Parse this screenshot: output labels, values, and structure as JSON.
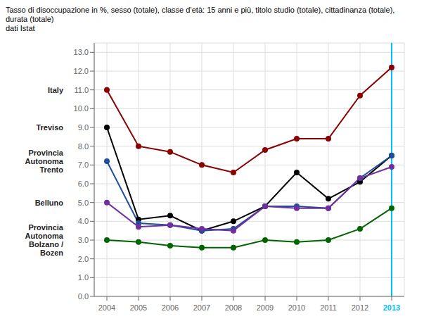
{
  "chart_data": {
    "type": "line",
    "title": "Tasso di disoccupazione in %, sesso (totale), classe d’età: 15 anni e più, titolo studio (totale), cittadinanza (totale), durata (totale)",
    "subtitle": "dati Istat",
    "x": [
      2004,
      2005,
      2006,
      2007,
      2008,
      2009,
      2010,
      2011,
      2012,
      2013
    ],
    "series": [
      {
        "name": "Italy",
        "color": "#8B0000",
        "values": [
          11.0,
          8.0,
          7.7,
          7.0,
          6.6,
          7.8,
          8.4,
          8.4,
          10.7,
          12.2
        ]
      },
      {
        "name": "Treviso",
        "color": "#000000",
        "values": [
          9.0,
          4.1,
          4.3,
          3.5,
          4.0,
          4.8,
          6.6,
          5.2,
          6.1,
          7.5
        ]
      },
      {
        "name": "Provincia\nAutonoma\nTrento",
        "color": "#1F4E9B",
        "values": [
          7.2,
          3.9,
          3.8,
          3.5,
          3.6,
          4.8,
          4.8,
          4.7,
          6.3,
          7.5
        ]
      },
      {
        "name": "Belluno",
        "color": "#7030A0",
        "values": [
          5.0,
          3.7,
          3.8,
          3.6,
          3.5,
          4.8,
          4.7,
          4.7,
          6.3,
          6.9
        ]
      },
      {
        "name": "Provincia\nAutonoma\nBolzano /\nBozen",
        "color": "#006400",
        "values": [
          3.0,
          2.9,
          2.7,
          2.6,
          2.6,
          3.0,
          2.9,
          3.0,
          3.6,
          4.7
        ]
      }
    ],
    "xlim": [
      2003.6,
      2013.4
    ],
    "xticks": [
      2004,
      2005,
      2006,
      2007,
      2008,
      2009,
      2010,
      2011,
      2012,
      2013
    ],
    "ylim": [
      0.0,
      13.5
    ],
    "yticks": [
      {
        "value": 0,
        "label": "0.0"
      },
      {
        "value": 1,
        "label": "1.0"
      },
      {
        "value": 2,
        "label": "2.0"
      },
      {
        "value": 3,
        "label": "3.0"
      },
      {
        "value": 4,
        "label": "4.0"
      },
      {
        "value": 5,
        "label": "5.0"
      },
      {
        "value": 6,
        "label": "6.0"
      },
      {
        "value": 7,
        "label": "7.0"
      },
      {
        "value": 8,
        "label": "8.0"
      },
      {
        "value": 9,
        "label": "9.0"
      },
      {
        "value": 10,
        "label": "10.0"
      },
      {
        "value": 11,
        "label": "11.0"
      },
      {
        "value": 12,
        "label": "12.0"
      },
      {
        "value": 13,
        "label": "13.0"
      }
    ],
    "grid": true,
    "marker": "circle",
    "vlines": [
      {
        "x": 2013,
        "color": "#00BFFF"
      }
    ]
  }
}
